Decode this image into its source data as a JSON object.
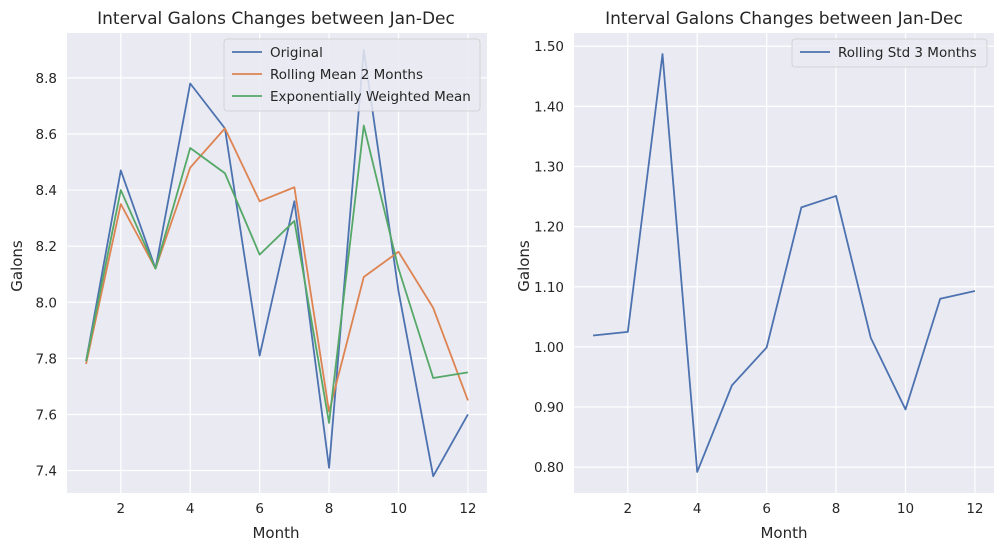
{
  "figure": {
    "background": "#ffffff",
    "axes_facecolor": "#eaeaf2",
    "grid_color": "#ffffff"
  },
  "chart_data": [
    {
      "type": "line",
      "title": "Interval Galons Changes between Jan-Dec",
      "xlabel": "Month",
      "ylabel": "Galons",
      "xlim": [
        0.45,
        12.55
      ],
      "ylim": [
        7.32,
        8.96
      ],
      "xticks": [
        2,
        4,
        6,
        8,
        10,
        12
      ],
      "yticks": [
        7.4,
        7.6,
        7.8,
        8.0,
        8.2,
        8.4,
        8.6,
        8.8
      ],
      "grid": true,
      "legend_position": "top-right",
      "x": [
        1,
        2,
        3,
        4,
        5,
        6,
        7,
        8,
        9,
        10,
        11,
        12
      ],
      "series": [
        {
          "name": "Original",
          "color": "#4c72b0",
          "values": [
            7.79,
            8.47,
            8.12,
            8.78,
            8.62,
            7.81,
            8.36,
            7.41,
            8.9,
            8.04,
            7.38,
            7.6
          ]
        },
        {
          "name": "Rolling Mean 2 Months",
          "color": "#dd8452",
          "values": [
            7.78,
            8.35,
            8.12,
            8.48,
            8.62,
            8.36,
            8.41,
            7.61,
            8.09,
            8.18,
            7.98,
            7.65
          ]
        },
        {
          "name": "Exponentially Weighted Mean",
          "color": "#55a868",
          "values": [
            7.79,
            8.4,
            8.12,
            8.55,
            8.46,
            8.17,
            8.29,
            7.57,
            8.63,
            8.12,
            7.73,
            7.75
          ]
        }
      ]
    },
    {
      "type": "line",
      "title": "Interval Galons Changes between Jan-Dec",
      "xlabel": "Month",
      "ylabel": "Galons",
      "xlim": [
        0.45,
        12.55
      ],
      "ylim": [
        0.757,
        1.522
      ],
      "xticks": [
        2,
        4,
        6,
        8,
        10,
        12
      ],
      "yticks": [
        0.8,
        0.9,
        1.0,
        1.1,
        1.2,
        1.3,
        1.4,
        1.5
      ],
      "grid": true,
      "legend_position": "top-right",
      "x": [
        1,
        2,
        3,
        4,
        5,
        6,
        7,
        8,
        9,
        10,
        11,
        12
      ],
      "series": [
        {
          "name": "Rolling Std 3 Months",
          "color": "#4c72b0",
          "values": [
            1.019,
            1.025,
            1.487,
            0.792,
            0.936,
            0.999,
            1.232,
            1.251,
            1.015,
            0.896,
            1.08,
            1.093
          ]
        }
      ]
    }
  ]
}
